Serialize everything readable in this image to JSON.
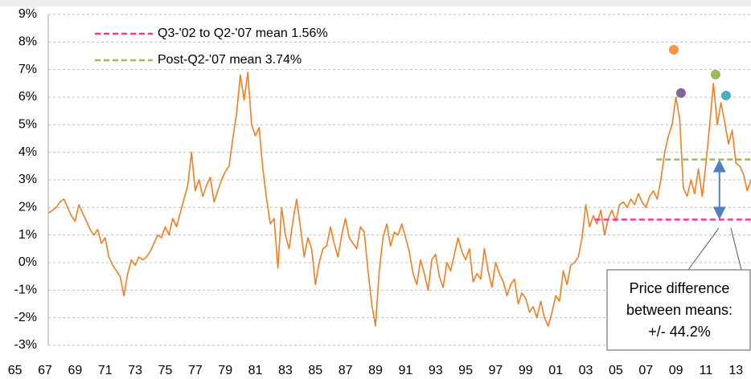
{
  "chart_data": {
    "type": "line",
    "x": [
      1967.25,
      1967.5,
      1967.75,
      1968,
      1968.25,
      1968.5,
      1968.75,
      1969,
      1969.25,
      1969.5,
      1969.75,
      1970,
      1970.25,
      1970.5,
      1970.75,
      1971,
      1971.25,
      1971.5,
      1971.75,
      1972,
      1972.25,
      1972.5,
      1972.75,
      1973,
      1973.25,
      1973.5,
      1973.75,
      1974,
      1974.25,
      1974.5,
      1974.75,
      1975,
      1975.25,
      1975.5,
      1975.75,
      1976,
      1976.25,
      1976.5,
      1976.75,
      1977,
      1977.25,
      1977.5,
      1977.75,
      1978,
      1978.25,
      1978.5,
      1978.75,
      1979,
      1979.25,
      1979.5,
      1979.75,
      1980,
      1980.25,
      1980.5,
      1980.75,
      1981,
      1981.25,
      1981.5,
      1981.75,
      1982,
      1982.25,
      1982.5,
      1982.75,
      1983,
      1983.25,
      1983.5,
      1983.75,
      1984,
      1984.25,
      1984.5,
      1984.75,
      1985,
      1985.25,
      1985.5,
      1985.75,
      1986,
      1986.25,
      1986.5,
      1986.75,
      1987,
      1987.25,
      1987.5,
      1987.75,
      1988,
      1988.25,
      1988.5,
      1988.75,
      1989,
      1989.25,
      1989.5,
      1989.75,
      1990,
      1990.25,
      1990.5,
      1990.75,
      1991,
      1991.25,
      1991.5,
      1991.75,
      1992,
      1992.25,
      1992.5,
      1992.75,
      1993,
      1993.25,
      1993.5,
      1993.75,
      1994,
      1994.25,
      1994.5,
      1994.75,
      1995,
      1995.25,
      1995.5,
      1995.75,
      1996,
      1996.25,
      1996.5,
      1996.75,
      1997,
      1997.25,
      1997.5,
      1997.75,
      1998,
      1998.25,
      1998.5,
      1998.75,
      1999,
      1999.25,
      1999.5,
      1999.75,
      2000,
      2000.25,
      2000.5,
      2000.75,
      2001,
      2001.25,
      2001.5,
      2001.75,
      2002,
      2002.25,
      2002.5,
      2002.75,
      2003,
      2003.25,
      2003.5,
      2003.75,
      2004,
      2004.25,
      2004.5,
      2004.75,
      2005,
      2005.25,
      2005.5,
      2005.75,
      2006,
      2006.25,
      2006.5,
      2006.75,
      2007,
      2007.25,
      2007.5,
      2007.75,
      2008,
      2008.25,
      2008.5,
      2008.75,
      2009,
      2009.25,
      2009.5,
      2009.75,
      2010,
      2010.25,
      2010.5,
      2010.75,
      2011,
      2011.25,
      2011.5,
      2011.75,
      2012,
      2012.25,
      2012.5,
      2012.75,
      2013,
      2013.25,
      2013.5,
      2013.75,
      2014
    ],
    "series": [
      {
        "color": "#f07f22",
        "values": [
          1.8,
          1.9,
          2.0,
          2.2,
          2.3,
          2.0,
          1.7,
          1.5,
          2.1,
          1.8,
          1.5,
          1.2,
          1.0,
          1.2,
          0.7,
          0.9,
          0.2,
          -0.1,
          -0.3,
          -0.5,
          -1.2,
          -0.4,
          0.1,
          -0.1,
          0.2,
          0.1,
          0.2,
          0.4,
          0.7,
          1.0,
          0.9,
          1.3,
          1.0,
          1.6,
          1.3,
          1.8,
          2.3,
          2.8,
          4.0,
          2.6,
          3.0,
          2.4,
          2.8,
          3.1,
          2.2,
          2.6,
          3.0,
          3.3,
          3.5,
          4.5,
          5.4,
          6.8,
          5.9,
          6.9,
          5.0,
          4.6,
          4.9,
          3.4,
          2.3,
          1.4,
          1.6,
          -0.2,
          2.0,
          1.0,
          0.5,
          1.5,
          2.3,
          1.3,
          0.2,
          0.9,
          0.5,
          -0.8,
          0.0,
          0.5,
          0.6,
          1.3,
          0.7,
          0.2,
          1.0,
          1.6,
          0.9,
          0.7,
          0.5,
          1.3,
          1.1,
          -0.3,
          -1.5,
          -2.3,
          -0.3,
          0.9,
          1.4,
          0.6,
          1.1,
          1.0,
          1.4,
          0.9,
          0.4,
          -0.4,
          -0.8,
          0.1,
          -0.4,
          -1.0,
          0.1,
          0.3,
          -0.5,
          -0.9,
          0.0,
          -0.3,
          0.3,
          0.9,
          0.4,
          0.1,
          0.5,
          -0.7,
          -0.4,
          -0.6,
          0.5,
          -0.3,
          -0.9,
          0.0,
          -0.4,
          -0.7,
          -1.2,
          -0.8,
          -0.6,
          -1.5,
          -1.1,
          -1.3,
          -1.8,
          -1.6,
          -2.0,
          -1.4,
          -2.0,
          -2.3,
          -1.8,
          -1.2,
          -1.4,
          -0.3,
          -0.8,
          -0.1,
          0.0,
          0.2,
          0.9,
          2.1,
          1.3,
          1.7,
          1.4,
          1.9,
          1.0,
          1.6,
          1.9,
          1.5,
          2.1,
          2.2,
          2.0,
          2.3,
          2.1,
          2.5,
          2.2,
          2.0,
          2.4,
          2.6,
          2.3,
          3.0,
          4.0,
          4.6,
          5.0,
          6.0,
          5.2,
          2.7,
          2.4,
          3.0,
          2.5,
          3.4,
          2.4,
          3.6,
          5.0,
          6.5,
          5.0,
          5.8,
          5.1,
          4.3,
          4.8,
          3.6,
          3.5,
          3.2,
          2.6,
          3.0
        ]
      }
    ],
    "xlim": [
      1964,
      2014
    ],
    "xticks": [
      {
        "value": 1965,
        "label": "65"
      },
      {
        "value": 1967,
        "label": "67"
      },
      {
        "value": 1969,
        "label": "69"
      },
      {
        "value": 1971,
        "label": "71"
      },
      {
        "value": 1973,
        "label": "73"
      },
      {
        "value": 1975,
        "label": "75"
      },
      {
        "value": 1977,
        "label": "77"
      },
      {
        "value": 1979,
        "label": "79"
      },
      {
        "value": 1981,
        "label": "81"
      },
      {
        "value": 1983,
        "label": "83"
      },
      {
        "value": 1985,
        "label": "85"
      },
      {
        "value": 1987,
        "label": "87"
      },
      {
        "value": 1989,
        "label": "89"
      },
      {
        "value": 1991,
        "label": "91"
      },
      {
        "value": 1993,
        "label": "93"
      },
      {
        "value": 1995,
        "label": "95"
      },
      {
        "value": 1997,
        "label": "97"
      },
      {
        "value": 1999,
        "label": "99"
      },
      {
        "value": 2001,
        "label": "01"
      },
      {
        "value": 2003,
        "label": "03"
      },
      {
        "value": 2005,
        "label": "05"
      },
      {
        "value": 2007,
        "label": "07"
      },
      {
        "value": 2009,
        "label": "09"
      },
      {
        "value": 2011,
        "label": "11"
      },
      {
        "value": 2013,
        "label": "13"
      }
    ],
    "ylim": [
      -3,
      9
    ],
    "yticks": [
      {
        "value": -3,
        "label": "-3%"
      },
      {
        "value": -2,
        "label": "-2%"
      },
      {
        "value": -1,
        "label": "-1%"
      },
      {
        "value": 0,
        "label": "0%"
      },
      {
        "value": 1,
        "label": "1%"
      },
      {
        "value": 2,
        "label": "2%"
      },
      {
        "value": 3,
        "label": "3%"
      },
      {
        "value": 4,
        "label": "4%"
      },
      {
        "value": 5,
        "label": "5%"
      },
      {
        "value": 6,
        "label": "6%"
      },
      {
        "value": 7,
        "label": "7%"
      },
      {
        "value": 8,
        "label": "8%"
      },
      {
        "value": 9,
        "label": "9%"
      }
    ],
    "grid": true,
    "reference_lines": [
      {
        "name": "Q3-'02 to Q2-'07 mean 1.56%",
        "value": 1.56,
        "x": [
          2003.6,
          2014
        ],
        "color": "#ff3399"
      },
      {
        "name": "Post-Q2-'07 mean 3.74%",
        "value": 3.74,
        "x": [
          2007.7,
          2014
        ],
        "color": "#9bbb59"
      }
    ],
    "points": [
      {
        "x": 2008.86,
        "y": 7.72,
        "color": "#f79646"
      },
      {
        "x": 2009.34,
        "y": 6.15,
        "color": "#8064a2"
      },
      {
        "x": 2011.64,
        "y": 6.82,
        "color": "#9bbb59"
      },
      {
        "x": 2012.34,
        "y": 6.06,
        "color": "#4bacc6"
      }
    ],
    "arrow": {
      "x": 2011.9,
      "color": "#4f81bd"
    },
    "annotation": [
      "Price difference",
      "between means:",
      "+/- 44.2%"
    ]
  }
}
